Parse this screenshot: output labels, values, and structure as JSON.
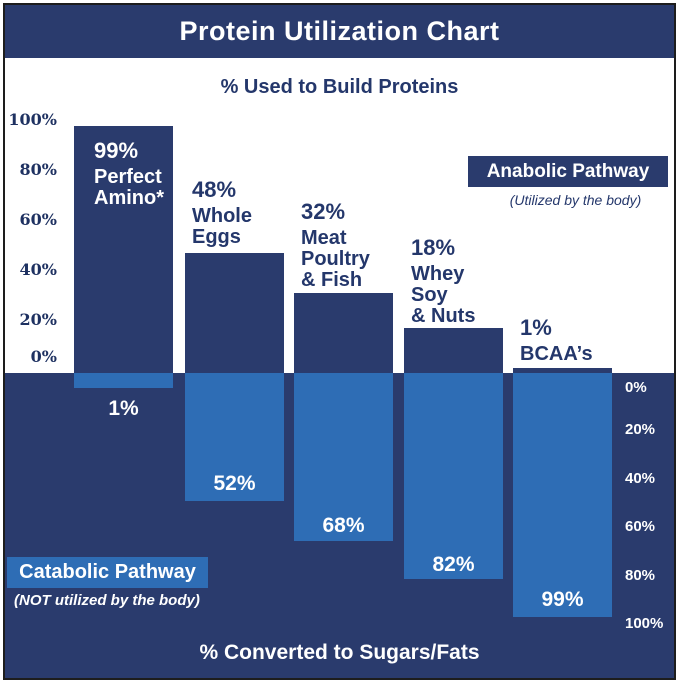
{
  "title": "Protein Utilization Chart",
  "top_section": {
    "subtitle": "% Used to Build Proteins"
  },
  "bottom_section": {
    "title": "% Converted to Sugars/Fats"
  },
  "legend": {
    "anabolic": {
      "label": "Anabolic Pathway",
      "caption": "(Utilized by the body)"
    },
    "catabolic": {
      "label": "Catabolic Pathway",
      "caption": "(NOT utilized by the body)"
    }
  },
  "top_axis": {
    "labels": [
      "100%",
      "80%",
      "60%",
      "40%",
      "20%",
      "0%"
    ]
  },
  "bottom_axis": {
    "labels": [
      "0%",
      "20%",
      "40%",
      "60%",
      "80%",
      "100%"
    ]
  },
  "colors": {
    "navy": "#2A3B6D",
    "blue": "#2E6DB5",
    "white": "#FFFFFF",
    "axis_text_navy": "#1E3161"
  },
  "chart_data": {
    "type": "bar",
    "title": "Protein Utilization Chart",
    "categories": [
      "Perfect Amino*",
      "Whole Eggs",
      "Meat Poultry & Fish",
      "Whey Soy & Nuts",
      "BCAA's"
    ],
    "series": [
      {
        "name": "% Used to Build Proteins (Anabolic Pathway)",
        "values": [
          99,
          48,
          32,
          18,
          1
        ]
      },
      {
        "name": "% Converted to Sugars/Fats (Catabolic Pathway)",
        "values": [
          1,
          52,
          68,
          82,
          99
        ]
      }
    ],
    "axis_top": {
      "range": [
        0,
        100
      ],
      "direction": "up",
      "tick_step": 20
    },
    "axis_bottom": {
      "range": [
        0,
        100
      ],
      "direction": "down",
      "tick_step": 20
    },
    "grid": false,
    "legend_position": "top-right and bottom-left",
    "items": [
      {
        "pct_build": "99%",
        "name": "Perfect\nAmino*",
        "pct_conv": "1%"
      },
      {
        "pct_build": "48%",
        "name": "Whole\nEggs",
        "pct_conv": "52%"
      },
      {
        "pct_build": "32%",
        "name": "Meat\nPoultry\n& Fish",
        "pct_conv": "68%"
      },
      {
        "pct_build": "18%",
        "name": "Whey\nSoy\n& Nuts",
        "pct_conv": "82%"
      },
      {
        "pct_build": "1%",
        "name": "BCAA’s",
        "pct_conv": "99%"
      }
    ]
  }
}
